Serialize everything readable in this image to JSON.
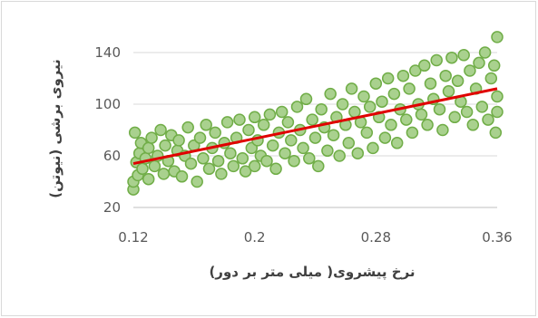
{
  "chart_data": {
    "type": "scatter",
    "title": "",
    "xlabel": "نرخ پیشروی( میلی متر بر دور)",
    "ylabel": "نیروی برشی (نیوتن)",
    "xlim": [
      0.12,
      0.36
    ],
    "ylim": [
      20,
      150
    ],
    "x_ticks": [
      "0.12",
      "0.2",
      "0.28",
      "0.36"
    ],
    "y_ticks": [
      "20",
      "60",
      "100",
      "140"
    ],
    "grid": "horizontal",
    "marker_color": "#a9d18e",
    "marker_edge": "#70ad47",
    "trendline_color": "#e00000",
    "trendline": {
      "x": [
        0.12,
        0.36
      ],
      "y": [
        54,
        112
      ]
    },
    "series": [
      {
        "points": [
          [
            0.12,
            34
          ],
          [
            0.12,
            40
          ],
          [
            0.121,
            78
          ],
          [
            0.122,
            55
          ],
          [
            0.123,
            45
          ],
          [
            0.124,
            62
          ],
          [
            0.125,
            70
          ],
          [
            0.126,
            50
          ],
          [
            0.128,
            58
          ],
          [
            0.13,
            42
          ],
          [
            0.13,
            66
          ],
          [
            0.132,
            74
          ],
          [
            0.134,
            52
          ],
          [
            0.136,
            60
          ],
          [
            0.138,
            80
          ],
          [
            0.14,
            46
          ],
          [
            0.141,
            68
          ],
          [
            0.143,
            56
          ],
          [
            0.145,
            76
          ],
          [
            0.147,
            48
          ],
          [
            0.149,
            64
          ],
          [
            0.15,
            72
          ],
          [
            0.152,
            44
          ],
          [
            0.154,
            60
          ],
          [
            0.156,
            82
          ],
          [
            0.158,
            54
          ],
          [
            0.16,
            68
          ],
          [
            0.162,
            40
          ],
          [
            0.164,
            74
          ],
          [
            0.166,
            58
          ],
          [
            0.168,
            84
          ],
          [
            0.17,
            50
          ],
          [
            0.172,
            66
          ],
          [
            0.174,
            78
          ],
          [
            0.176,
            56
          ],
          [
            0.178,
            46
          ],
          [
            0.18,
            70
          ],
          [
            0.182,
            86
          ],
          [
            0.184,
            62
          ],
          [
            0.186,
            52
          ],
          [
            0.188,
            74
          ],
          [
            0.19,
            88
          ],
          [
            0.192,
            58
          ],
          [
            0.194,
            48
          ],
          [
            0.196,
            80
          ],
          [
            0.198,
            66
          ],
          [
            0.2,
            90
          ],
          [
            0.2,
            52
          ],
          [
            0.202,
            72
          ],
          [
            0.204,
            60
          ],
          [
            0.206,
            84
          ],
          [
            0.208,
            56
          ],
          [
            0.21,
            92
          ],
          [
            0.212,
            68
          ],
          [
            0.214,
            50
          ],
          [
            0.216,
            78
          ],
          [
            0.218,
            94
          ],
          [
            0.22,
            62
          ],
          [
            0.222,
            86
          ],
          [
            0.224,
            72
          ],
          [
            0.226,
            56
          ],
          [
            0.228,
            98
          ],
          [
            0.23,
            80
          ],
          [
            0.232,
            66
          ],
          [
            0.234,
            104
          ],
          [
            0.236,
            58
          ],
          [
            0.238,
            88
          ],
          [
            0.24,
            74
          ],
          [
            0.242,
            52
          ],
          [
            0.244,
            96
          ],
          [
            0.246,
            82
          ],
          [
            0.248,
            64
          ],
          [
            0.25,
            108
          ],
          [
            0.252,
            76
          ],
          [
            0.254,
            90
          ],
          [
            0.256,
            60
          ],
          [
            0.258,
            100
          ],
          [
            0.26,
            84
          ],
          [
            0.262,
            70
          ],
          [
            0.264,
            112
          ],
          [
            0.266,
            94
          ],
          [
            0.268,
            62
          ],
          [
            0.27,
            86
          ],
          [
            0.272,
            106
          ],
          [
            0.274,
            78
          ],
          [
            0.276,
            98
          ],
          [
            0.278,
            66
          ],
          [
            0.28,
            116
          ],
          [
            0.282,
            90
          ],
          [
            0.284,
            102
          ],
          [
            0.286,
            74
          ],
          [
            0.288,
            120
          ],
          [
            0.29,
            84
          ],
          [
            0.292,
            108
          ],
          [
            0.294,
            70
          ],
          [
            0.296,
            96
          ],
          [
            0.298,
            122
          ],
          [
            0.3,
            88
          ],
          [
            0.302,
            112
          ],
          [
            0.304,
            78
          ],
          [
            0.306,
            126
          ],
          [
            0.308,
            100
          ],
          [
            0.31,
            92
          ],
          [
            0.312,
            130
          ],
          [
            0.314,
            84
          ],
          [
            0.316,
            116
          ],
          [
            0.318,
            104
          ],
          [
            0.32,
            134
          ],
          [
            0.322,
            96
          ],
          [
            0.324,
            80
          ],
          [
            0.326,
            122
          ],
          [
            0.328,
            110
          ],
          [
            0.33,
            136
          ],
          [
            0.332,
            90
          ],
          [
            0.334,
            118
          ],
          [
            0.336,
            102
          ],
          [
            0.338,
            138
          ],
          [
            0.34,
            94
          ],
          [
            0.342,
            126
          ],
          [
            0.344,
            84
          ],
          [
            0.346,
            112
          ],
          [
            0.348,
            132
          ],
          [
            0.35,
            98
          ],
          [
            0.352,
            140
          ],
          [
            0.354,
            88
          ],
          [
            0.356,
            120
          ],
          [
            0.358,
            130
          ],
          [
            0.359,
            78
          ],
          [
            0.36,
            152
          ],
          [
            0.36,
            106
          ],
          [
            0.36,
            94
          ]
        ]
      }
    ]
  }
}
